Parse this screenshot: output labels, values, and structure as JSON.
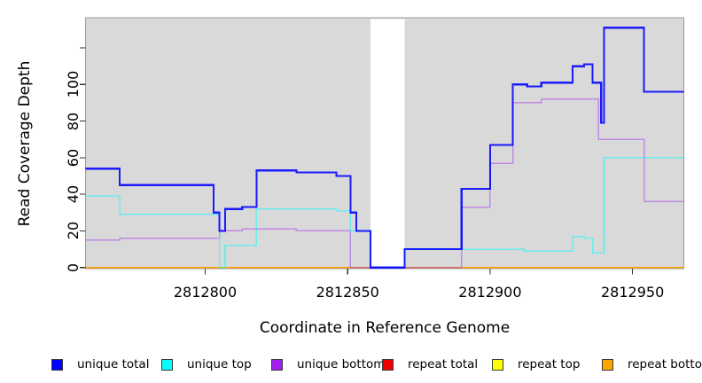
{
  "figure": {
    "background": "#FFFFFF",
    "plot_background": "#D9D9D9",
    "plot_border_color": "#9A9A9A",
    "tick_color": "#333333"
  },
  "chart_data": {
    "type": "line",
    "subtype": "step-coverage",
    "title": "",
    "xlabel": "Coordinate in Reference Genome",
    "ylabel": "Read Coverage Depth",
    "xlim": [
      2812758,
      2812968
    ],
    "ylim": [
      0,
      136
    ],
    "grid": false,
    "legend_position": "bottom",
    "x_ticks": [
      2812800,
      2812850,
      2812900,
      2812950
    ],
    "x_tick_labels": [
      "2812800",
      "2812850",
      "2812900",
      "2812950"
    ],
    "y_ticks": [
      0,
      20,
      40,
      60,
      80,
      100,
      120
    ],
    "y_tick_labels": [
      "0",
      "20",
      "40",
      "60",
      "80",
      "100",
      ""
    ],
    "masked_region": {
      "from": 2812858,
      "to": 2812870,
      "color": "#FFFFFF"
    },
    "series": [
      {
        "name": "repeat top",
        "color": "#FFFF00",
        "opacity": 1,
        "width": 1.5,
        "steps": [
          [
            2812758,
            0
          ],
          [
            2812968,
            0
          ]
        ]
      },
      {
        "name": "repeat total",
        "color": "#EE0000",
        "opacity": 1,
        "width": 1.5,
        "steps": [
          [
            2812758,
            0
          ],
          [
            2812968,
            0
          ]
        ]
      },
      {
        "name": "repeat bottom",
        "color": "#FFA500",
        "opacity": 1,
        "width": 1.8,
        "steps": [
          [
            2812758,
            0
          ],
          [
            2812968,
            0
          ]
        ]
      },
      {
        "name": "unique bottom",
        "color": "#A020F0",
        "opacity": 0.42,
        "width": 1.5,
        "steps": [
          [
            2812758,
            15
          ],
          [
            2812770,
            16
          ],
          [
            2812805,
            20
          ],
          [
            2812813,
            21
          ],
          [
            2812832,
            20
          ],
          [
            2812851,
            0
          ],
          [
            2812890,
            33
          ],
          [
            2812900,
            57
          ],
          [
            2812908,
            90
          ],
          [
            2812918,
            92
          ],
          [
            2812938,
            70
          ],
          [
            2812954,
            36
          ],
          [
            2812968,
            36
          ]
        ]
      },
      {
        "name": "unique top",
        "color": "#00FFFF",
        "opacity": 0.5,
        "width": 1.6,
        "steps": [
          [
            2812758,
            39
          ],
          [
            2812770,
            29
          ],
          [
            2812805,
            0
          ],
          [
            2812807,
            12
          ],
          [
            2812818,
            32
          ],
          [
            2812846,
            31
          ],
          [
            2812851,
            20
          ],
          [
            2812858,
            0
          ],
          [
            2812870,
            10
          ],
          [
            2812912,
            9
          ],
          [
            2812929,
            17
          ],
          [
            2812933,
            16
          ],
          [
            2812936,
            8
          ],
          [
            2812940,
            60
          ],
          [
            2812968,
            60
          ]
        ]
      },
      {
        "name": "unique total",
        "color": "#0000FF",
        "opacity": 0.88,
        "width": 2.2,
        "steps": [
          [
            2812758,
            54
          ],
          [
            2812770,
            45
          ],
          [
            2812803,
            30
          ],
          [
            2812805,
            20
          ],
          [
            2812807,
            32
          ],
          [
            2812813,
            33
          ],
          [
            2812818,
            53
          ],
          [
            2812832,
            52
          ],
          [
            2812846,
            50
          ],
          [
            2812851,
            30
          ],
          [
            2812853,
            20
          ],
          [
            2812858,
            0
          ],
          [
            2812870,
            10
          ],
          [
            2812890,
            43
          ],
          [
            2812900,
            67
          ],
          [
            2812908,
            100
          ],
          [
            2812913,
            99
          ],
          [
            2812918,
            101
          ],
          [
            2812929,
            110
          ],
          [
            2812933,
            111
          ],
          [
            2812936,
            101
          ],
          [
            2812939,
            79
          ],
          [
            2812940,
            131
          ],
          [
            2812954,
            96
          ],
          [
            2812968,
            96
          ]
        ]
      }
    ],
    "legend": [
      {
        "label": "unique total",
        "color": "#0000FF"
      },
      {
        "label": "unique top",
        "color": "#00FFFF"
      },
      {
        "label": "unique bottom",
        "color": "#A020F0"
      },
      {
        "label": "repeat total",
        "color": "#EE0000"
      },
      {
        "label": "repeat top",
        "color": "#FFFF00"
      },
      {
        "label": "repeat bottom",
        "color": "#FFA500"
      }
    ]
  }
}
